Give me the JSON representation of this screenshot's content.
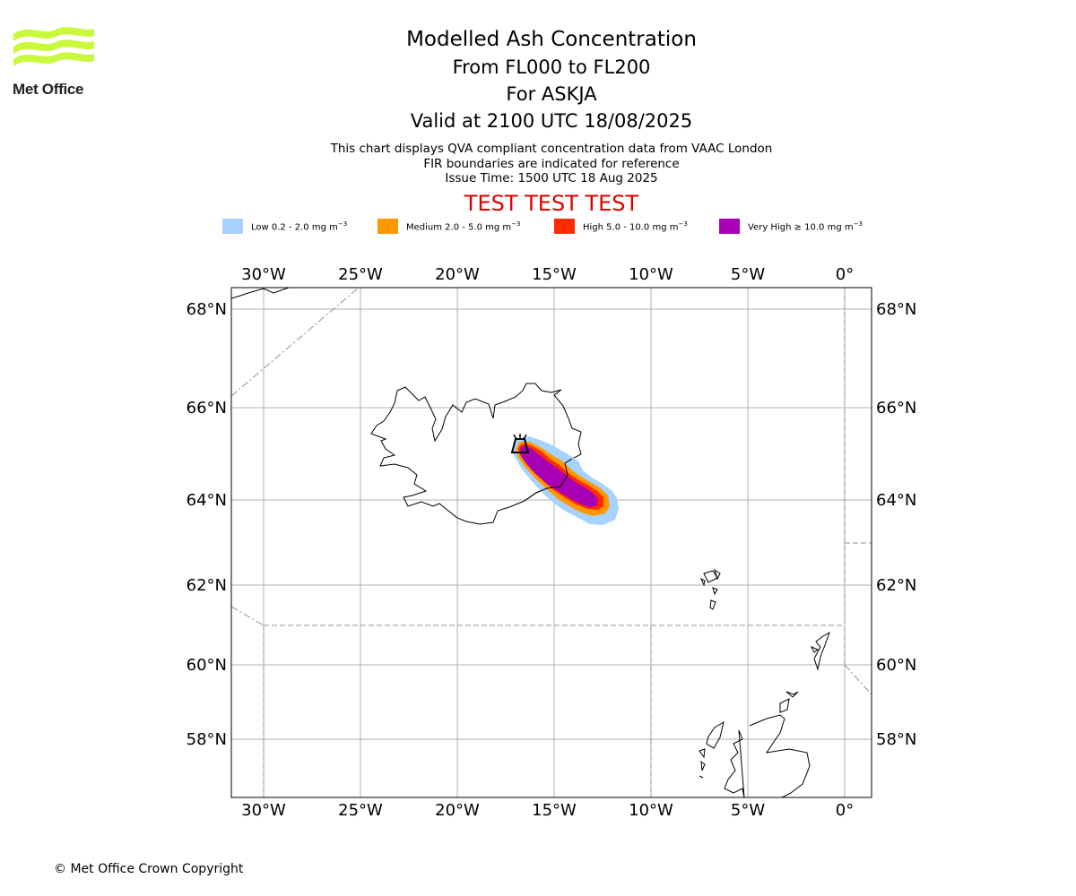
{
  "header": {
    "logo_text": "Met Office",
    "logo_color": "#c8f93a",
    "title": "Modelled Ash Concentration",
    "levels": "From FL000 to FL200",
    "volcano": "For ASKJA",
    "valid": "Valid at 2100 UTC 18/08/2025",
    "notes": [
      "This chart displays QVA compliant concentration data from VAAC London",
      "FIR boundaries are indicated for reference",
      "Issue Time: 1500 UTC 18 Aug 2025"
    ],
    "test_banner": "TEST TEST TEST"
  },
  "legend": [
    {
      "label": "Low 0.2 - 2.0 mg m",
      "unit_exp": "−3",
      "color": "#a6d2ff"
    },
    {
      "label": "Medium 2.0 - 5.0 mg m",
      "unit_exp": "−3",
      "color": "#ff9800"
    },
    {
      "label": "High 5.0 - 10.0 mg m",
      "unit_exp": "−3",
      "color": "#ff2a00"
    },
    {
      "label": "Very High  ≥  10.0 mg m",
      "unit_exp": "−3",
      "color": "#a800b4"
    }
  ],
  "map": {
    "lon_ticks": [
      "30°W",
      "25°W",
      "20°W",
      "15°W",
      "10°W",
      "5°W",
      "0°"
    ],
    "lat_ticks": [
      "68°N",
      "66°N",
      "64°N",
      "62°N",
      "60°N",
      "58°N"
    ],
    "volcano_symbol": "volcano-icon"
  },
  "footer": {
    "copyright": "© Met Office Crown Copyright"
  }
}
